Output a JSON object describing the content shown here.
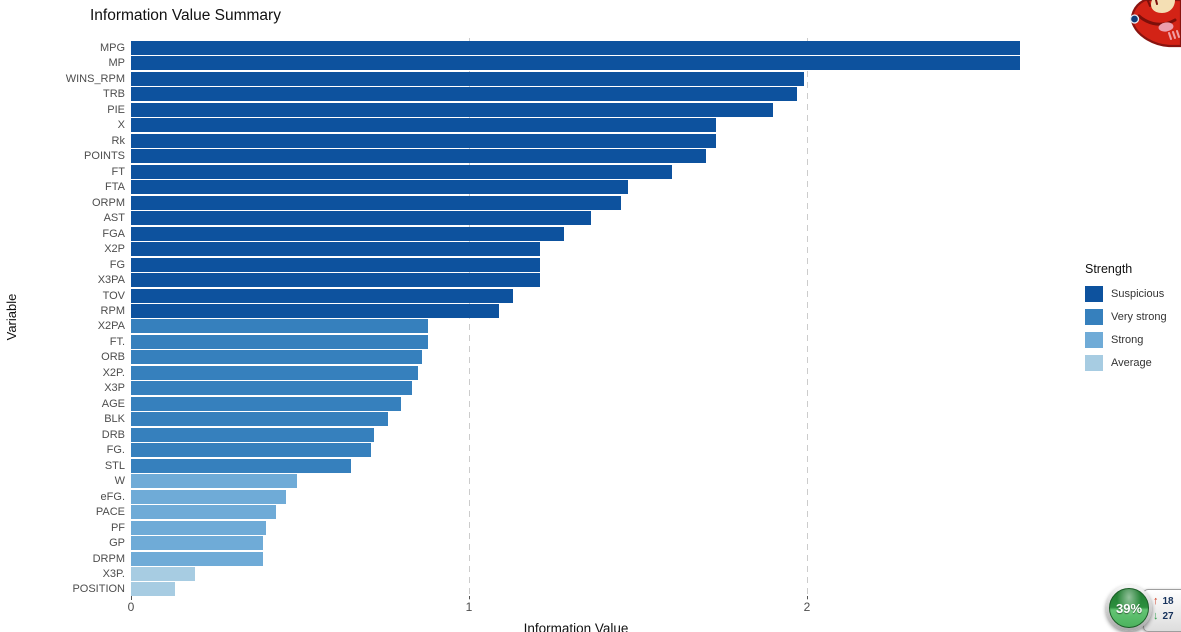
{
  "chart_data": {
    "type": "bar",
    "orientation": "horizontal",
    "title": "Information Value Summary",
    "xlabel": "Information Value",
    "ylabel": "Variable",
    "xlim": [
      0,
      2.72
    ],
    "xticks": [
      0,
      1,
      2
    ],
    "grid": "vertical dashed gridlines at x=1 and x=2",
    "legend_title": "Strength",
    "legend_position": "right",
    "colors": {
      "Suspicious": "#0d529e",
      "Very strong": "#3680bd",
      "Strong": "#6fabd7",
      "Average": "#a7cce2"
    },
    "legend_items": [
      {
        "label": "Suspicious",
        "color": "#0d529e"
      },
      {
        "label": "Very strong",
        "color": "#3680bd"
      },
      {
        "label": "Strong",
        "color": "#6fabd7"
      },
      {
        "label": "Average",
        "color": "#a7cce2"
      }
    ],
    "bars": [
      {
        "label": "MPG",
        "value": 2.63,
        "strength": "Suspicious"
      },
      {
        "label": "MP",
        "value": 2.63,
        "strength": "Suspicious"
      },
      {
        "label": "WINS_RPM",
        "value": 1.99,
        "strength": "Suspicious"
      },
      {
        "label": "TRB",
        "value": 1.97,
        "strength": "Suspicious"
      },
      {
        "label": "PIE",
        "value": 1.9,
        "strength": "Suspicious"
      },
      {
        "label": "X",
        "value": 1.73,
        "strength": "Suspicious"
      },
      {
        "label": "Rk",
        "value": 1.73,
        "strength": "Suspicious"
      },
      {
        "label": "POINTS",
        "value": 1.7,
        "strength": "Suspicious"
      },
      {
        "label": "FT",
        "value": 1.6,
        "strength": "Suspicious"
      },
      {
        "label": "FTA",
        "value": 1.47,
        "strength": "Suspicious"
      },
      {
        "label": "ORPM",
        "value": 1.45,
        "strength": "Suspicious"
      },
      {
        "label": "AST",
        "value": 1.36,
        "strength": "Suspicious"
      },
      {
        "label": "FGA",
        "value": 1.28,
        "strength": "Suspicious"
      },
      {
        "label": "X2P",
        "value": 1.21,
        "strength": "Suspicious"
      },
      {
        "label": "FG",
        "value": 1.21,
        "strength": "Suspicious"
      },
      {
        "label": "X3PA",
        "value": 1.21,
        "strength": "Suspicious"
      },
      {
        "label": "TOV",
        "value": 1.13,
        "strength": "Suspicious"
      },
      {
        "label": "RPM",
        "value": 1.09,
        "strength": "Suspicious"
      },
      {
        "label": "X2PA",
        "value": 0.88,
        "strength": "Very strong"
      },
      {
        "label": "FT.",
        "value": 0.88,
        "strength": "Very strong"
      },
      {
        "label": "ORB",
        "value": 0.86,
        "strength": "Very strong"
      },
      {
        "label": "X2P.",
        "value": 0.85,
        "strength": "Very strong"
      },
      {
        "label": "X3P",
        "value": 0.83,
        "strength": "Very strong"
      },
      {
        "label": "AGE",
        "value": 0.8,
        "strength": "Very strong"
      },
      {
        "label": "BLK",
        "value": 0.76,
        "strength": "Very strong"
      },
      {
        "label": "DRB",
        "value": 0.72,
        "strength": "Very strong"
      },
      {
        "label": "FG.",
        "value": 0.71,
        "strength": "Very strong"
      },
      {
        "label": "STL",
        "value": 0.65,
        "strength": "Very strong"
      },
      {
        "label": "W",
        "value": 0.49,
        "strength": "Strong"
      },
      {
        "label": "eFG.",
        "value": 0.46,
        "strength": "Strong"
      },
      {
        "label": "PACE",
        "value": 0.43,
        "strength": "Strong"
      },
      {
        "label": "PF",
        "value": 0.4,
        "strength": "Strong"
      },
      {
        "label": "GP",
        "value": 0.39,
        "strength": "Strong"
      },
      {
        "label": "DRPM",
        "value": 0.39,
        "strength": "Strong"
      },
      {
        "label": "X3P.",
        "value": 0.19,
        "strength": "Average"
      },
      {
        "label": "POSITION",
        "value": 0.13,
        "strength": "Average"
      }
    ]
  },
  "overlays": {
    "mascot": {
      "name": "red cartoon mascot sticker, partially off-screen"
    },
    "speed_widget": {
      "percent": "39%",
      "up_arrow": "↑",
      "down_arrow": "↓",
      "upload_value": "18",
      "download_value": "27",
      "up_color": "#cf3a1f",
      "down_color": "#2f9e49"
    }
  }
}
